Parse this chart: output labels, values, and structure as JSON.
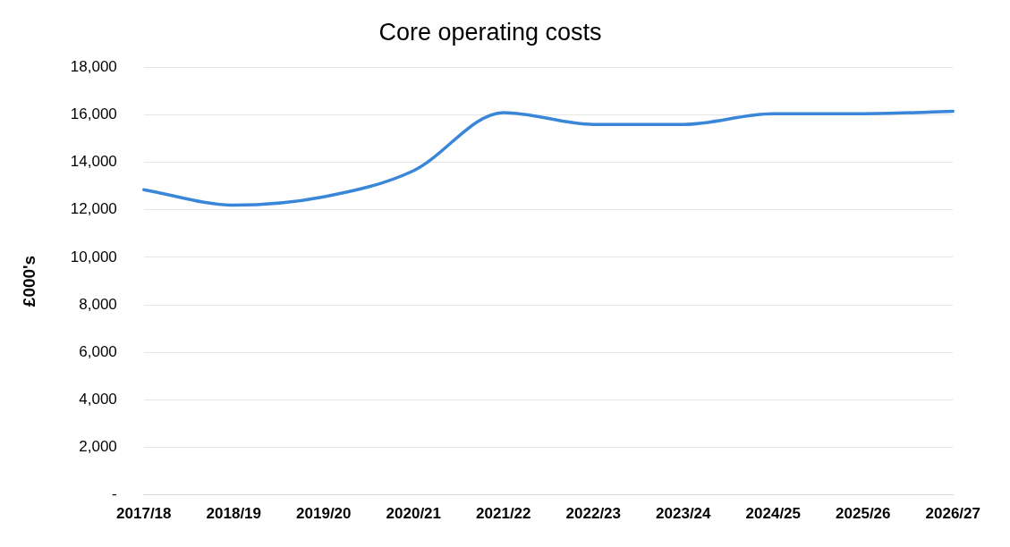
{
  "chart_data": {
    "type": "line",
    "title": "Core operating costs",
    "ylabel": "£000's",
    "categories": [
      "2017/18",
      "2018/19",
      "2019/20",
      "2020/21",
      "2021/22",
      "2022/23",
      "2023/24",
      "2024/25",
      "2025/26",
      "2026/27"
    ],
    "series": [
      {
        "color": "#3a86d8",
        "values": [
          12850,
          12200,
          12550,
          13650,
          16100,
          15600,
          15600,
          16050,
          16050,
          16150
        ]
      }
    ],
    "ylim": [
      0,
      18000
    ],
    "yticks": [
      {
        "value": 0,
        "label": "-"
      },
      {
        "value": 2000,
        "label": "2,000"
      },
      {
        "value": 4000,
        "label": "4,000"
      },
      {
        "value": 6000,
        "label": "6,000"
      },
      {
        "value": 8000,
        "label": "8,000"
      },
      {
        "value": 10000,
        "label": "10,000"
      },
      {
        "value": 12000,
        "label": "12,000"
      },
      {
        "value": 14000,
        "label": "14,000"
      },
      {
        "value": 16000,
        "label": "16,000"
      },
      {
        "value": 18000,
        "label": "18,000"
      }
    ],
    "grid": "y",
    "legend": false,
    "marker": "none",
    "line_style": "solid"
  }
}
